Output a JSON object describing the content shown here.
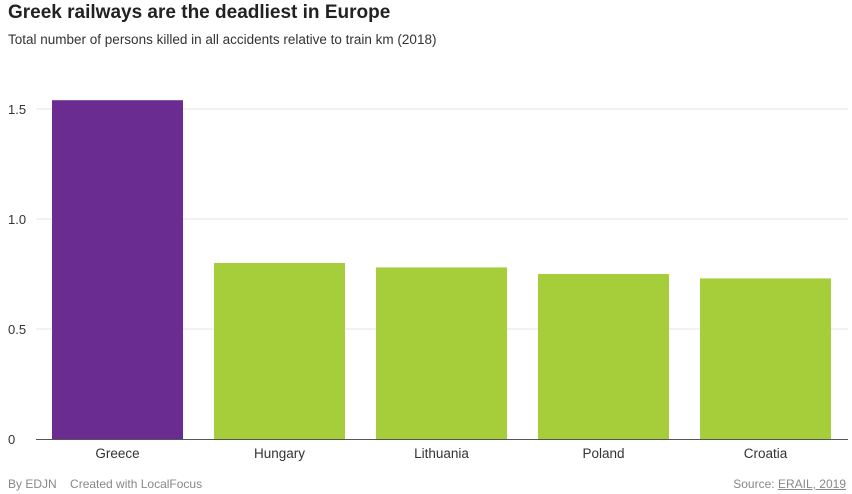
{
  "header": {
    "title": "Greek railways are the deadliest in Europe",
    "subtitle": "Total number of persons killed in all accidents relative to train km (2018)"
  },
  "footer": {
    "credit": "By EDJN",
    "tool": "Created with LocalFocus",
    "source_prefix": "Source: ",
    "source_link": "ERAIL, 2019"
  },
  "chart_data": {
    "type": "bar",
    "title": "Greek railways are the deadliest in Europe",
    "subtitle": "Total number of persons killed in all accidents relative to train km (2018)",
    "categories": [
      "Greece",
      "Hungary",
      "Lithuania",
      "Poland",
      "Croatia"
    ],
    "values": [
      1.54,
      0.8,
      0.78,
      0.75,
      0.73
    ],
    "colors": [
      "#6b2c91",
      "#a6cd3a",
      "#a6cd3a",
      "#a6cd3a",
      "#a6cd3a"
    ],
    "ylim": [
      0,
      1.5
    ],
    "yticks": [
      {
        "value": 0,
        "label": "0"
      },
      {
        "value": 0.5,
        "label": "0.5"
      },
      {
        "value": 1.0,
        "label": "1.0"
      },
      {
        "value": 1.5,
        "label": "1.5"
      }
    ],
    "grid": true,
    "gridColor": "#e6e6e6",
    "axisColor": "#555555"
  }
}
